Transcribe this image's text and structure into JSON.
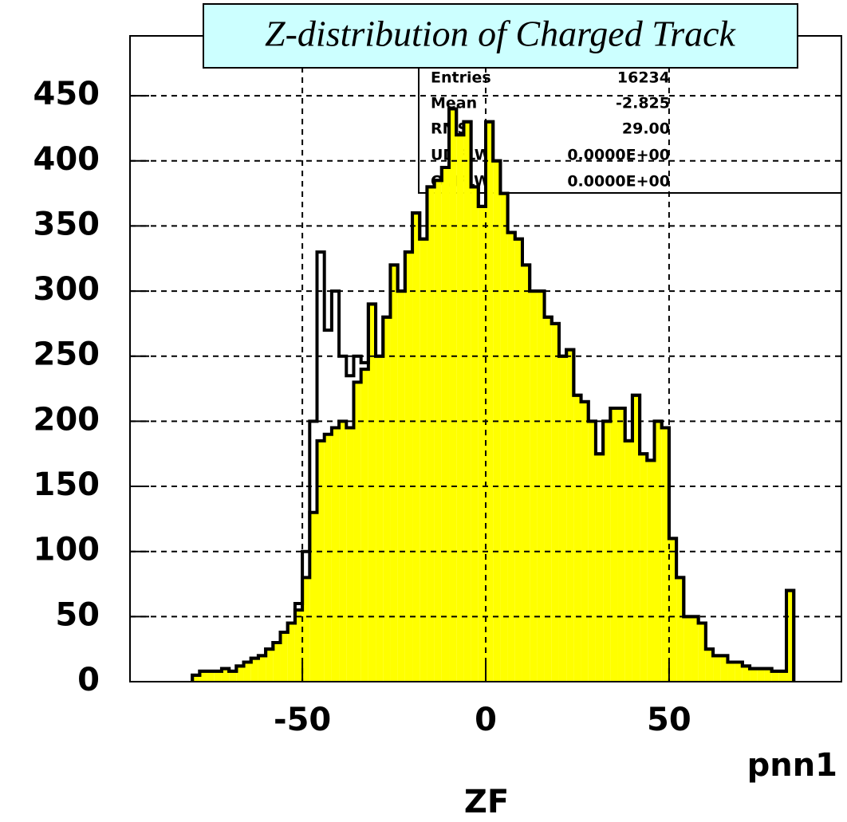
{
  "chart_data": {
    "type": "histogram",
    "title": "Z-distribution of Charged Track",
    "xlabel": "ZF",
    "corner_label": "pnn1",
    "bins": [
      -80,
      -78,
      -76,
      -74,
      -72,
      -70,
      -68,
      -66,
      -64,
      -62,
      -60,
      -58,
      -56,
      -54,
      -52,
      -50,
      -48,
      -46,
      -44,
      -42,
      -40,
      -38,
      -36,
      -34,
      -32,
      -30,
      -28,
      -26,
      -24,
      -22,
      -20,
      -18,
      -16,
      -14,
      -12,
      -10,
      -8,
      -6,
      -4,
      -2,
      0,
      2,
      4,
      6,
      8,
      10,
      12,
      14,
      16,
      18,
      20,
      22,
      24,
      26,
      28,
      30,
      32,
      34,
      36,
      38,
      40,
      42,
      44,
      46,
      48,
      50,
      52,
      54,
      56,
      58,
      60,
      62,
      64,
      66,
      68,
      70,
      72,
      74,
      76,
      78,
      80,
      82,
      84
    ],
    "series": [
      {
        "color": "#ffff00",
        "filled": true,
        "values": [
          5,
          8,
          8,
          8,
          10,
          8,
          12,
          15,
          18,
          20,
          25,
          30,
          38,
          45,
          55,
          80,
          130,
          185,
          190,
          195,
          200,
          195,
          230,
          240,
          290,
          250,
          280,
          320,
          300,
          330,
          360,
          340,
          380,
          385,
          395,
          440,
          420,
          430,
          380,
          365,
          430,
          400,
          375,
          345,
          340,
          320,
          300,
          300,
          280,
          275,
          250,
          255,
          220,
          215,
          200,
          175,
          200,
          210,
          210,
          185,
          220,
          175,
          170,
          200,
          195,
          110,
          80,
          50,
          50,
          45,
          25,
          20,
          20,
          15,
          15,
          12,
          10,
          10,
          10,
          8,
          8,
          70
        ]
      },
      {
        "color": "#000000",
        "filled": false,
        "values": [
          5,
          8,
          8,
          8,
          10,
          8,
          12,
          15,
          18,
          20,
          25,
          30,
          38,
          45,
          60,
          100,
          200,
          330,
          270,
          300,
          250,
          235,
          250,
          245,
          290,
          250,
          280,
          320,
          300,
          330,
          360,
          340,
          380,
          385,
          395,
          440,
          420,
          430,
          380,
          365,
          430,
          400,
          375,
          345,
          340,
          320,
          300,
          300,
          280,
          275,
          250,
          255,
          220,
          215,
          200,
          175,
          200,
          210,
          210,
          185,
          220,
          175,
          170,
          200,
          195,
          110,
          80,
          50,
          50,
          45,
          25,
          20,
          20,
          15,
          15,
          12,
          10,
          10,
          10,
          8,
          8,
          70
        ]
      }
    ],
    "xlim": [
      -97,
      97
    ],
    "ylim": [
      0,
      496
    ],
    "xticks": [
      -50,
      0,
      50
    ],
    "yticks": [
      0,
      50,
      100,
      150,
      200,
      250,
      300,
      350,
      400,
      450
    ],
    "grid": true
  },
  "stats_box": {
    "rows": [
      [
        "Entries",
        "16234"
      ],
      [
        "Mean",
        "-2.825"
      ],
      [
        "RMS",
        "29.00"
      ],
      [
        "UDFLW",
        "0.0000E+00"
      ],
      [
        "OVFLW",
        "0.0000E+00"
      ]
    ]
  }
}
